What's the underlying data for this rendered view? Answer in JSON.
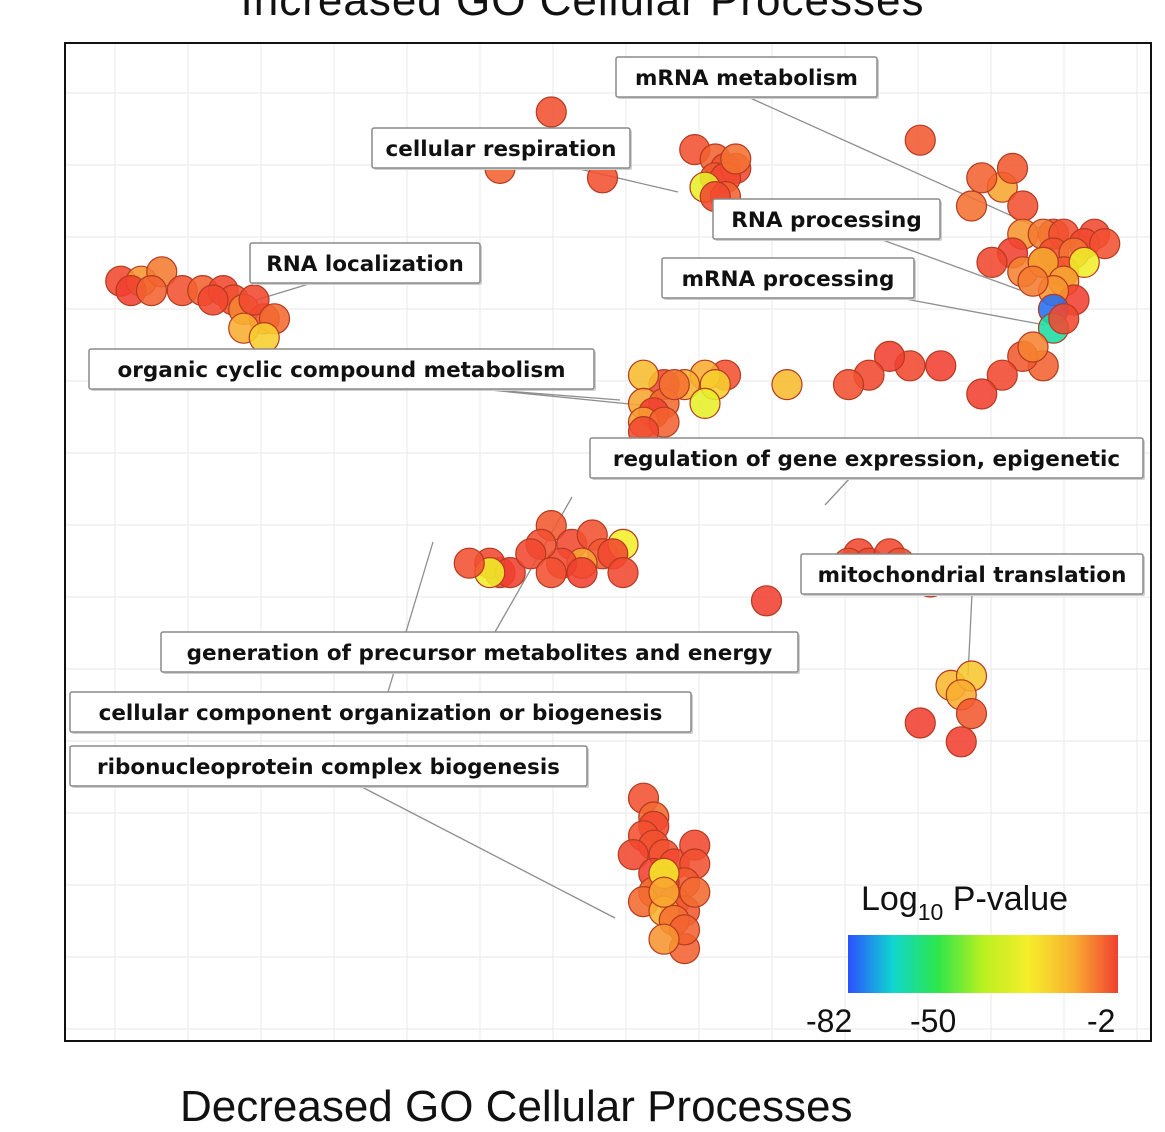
{
  "chart_data": {
    "type": "scatter",
    "title": "Increased GO Cellular Processes",
    "subtitle": "Decreased GO Cellular Processes",
    "xlabel": "",
    "ylabel": "",
    "grid": true,
    "color_scale": {
      "title_prefix": "Log",
      "title_sub": "10",
      "title_suffix": " P-value",
      "min": -82,
      "max": -2,
      "ticks": [
        "-82",
        "-50",
        "-2"
      ],
      "stops": [
        "#2b50ff",
        "#10d6d0",
        "#2ee64a",
        "#b9f020",
        "#f5ee2a",
        "#f8b030",
        "#f04030"
      ],
      "placement": "bottom-right"
    },
    "labels": [
      {
        "id": "mrna-metabolism",
        "text": "mRNA metabolism"
      },
      {
        "id": "cellular-respiration",
        "text": "cellular respiration"
      },
      {
        "id": "rna-processing",
        "text": "RNA processing"
      },
      {
        "id": "rna-localization",
        "text": "RNA localization"
      },
      {
        "id": "mrna-processing",
        "text": "mRNA processing"
      },
      {
        "id": "organic-cyclic",
        "text": "organic cyclic compound metabolism"
      },
      {
        "id": "regulation-epigenetic",
        "text": "regulation of gene expression, epigenetic"
      },
      {
        "id": "mito-translation",
        "text": "mitochondrial translation"
      },
      {
        "id": "precursor-metabolites",
        "text": "generation of precursor metabolites and energy"
      },
      {
        "id": "component-organization",
        "text": "cellular component organization or biogenesis"
      },
      {
        "id": "ribonucleoprotein",
        "text": "ribonucleoprotein complex biogenesis"
      }
    ],
    "points": [
      {
        "x": 45,
        "y": 95,
        "v": -4
      },
      {
        "x": 81,
        "y": 92,
        "v": -5
      },
      {
        "x": 89,
        "y": 87,
        "v": -14
      },
      {
        "x": 90,
        "y": 89,
        "v": -5
      },
      {
        "x": 87,
        "y": 88,
        "v": -6
      },
      {
        "x": 79,
        "y": 83,
        "v": -4
      },
      {
        "x": 91,
        "y": 85,
        "v": -4
      },
      {
        "x": 86,
        "y": 85,
        "v": -8
      },
      {
        "x": 94,
        "y": 82,
        "v": -4
      },
      {
        "x": 98,
        "y": 82,
        "v": -3
      },
      {
        "x": 91,
        "y": 82,
        "v": -12
      },
      {
        "x": 93,
        "y": 82,
        "v": -9
      },
      {
        "x": 95,
        "y": 82,
        "v": -4
      },
      {
        "x": 97,
        "y": 81,
        "v": -3
      },
      {
        "x": 99,
        "y": 81,
        "v": -4
      },
      {
        "x": 90,
        "y": 80,
        "v": -2
      },
      {
        "x": 94,
        "y": 80,
        "v": -4
      },
      {
        "x": 96,
        "y": 80,
        "v": -8
      },
      {
        "x": 91,
        "y": 78,
        "v": -10
      },
      {
        "x": 95,
        "y": 78,
        "v": -5
      },
      {
        "x": 88,
        "y": 79,
        "v": -3
      },
      {
        "x": 93,
        "y": 79,
        "v": -28
      },
      {
        "x": 93,
        "y": 79,
        "v": -12
      },
      {
        "x": 97,
        "y": 79,
        "v": -30
      },
      {
        "x": 95,
        "y": 77,
        "v": -14
      },
      {
        "x": 96,
        "y": 75,
        "v": -2
      },
      {
        "x": 94,
        "y": 76,
        "v": -12
      },
      {
        "x": 92,
        "y": 77,
        "v": -9
      },
      {
        "x": 94,
        "y": 74,
        "v": -79
      },
      {
        "x": 94,
        "y": 72,
        "v": -64
      },
      {
        "x": 95,
        "y": 73,
        "v": -3
      },
      {
        "x": 93,
        "y": 68,
        "v": -6
      },
      {
        "x": 91,
        "y": 69,
        "v": -5
      },
      {
        "x": 92,
        "y": 70,
        "v": -10
      },
      {
        "x": 89,
        "y": 67,
        "v": -3
      },
      {
        "x": 87,
        "y": 65,
        "v": -2
      },
      {
        "x": 83,
        "y": 68,
        "v": -2
      },
      {
        "x": 80,
        "y": 68,
        "v": -3
      },
      {
        "x": 78,
        "y": 69,
        "v": -2
      },
      {
        "x": 76,
        "y": 67,
        "v": -3
      },
      {
        "x": 74,
        "y": 66,
        "v": -4
      },
      {
        "x": 68,
        "y": 66,
        "v": -18
      },
      {
        "x": 62,
        "y": 67,
        "v": -4
      },
      {
        "x": 60,
        "y": 67,
        "v": -15
      },
      {
        "x": 61,
        "y": 66,
        "v": -22
      },
      {
        "x": 58,
        "y": 66,
        "v": -16
      },
      {
        "x": 56,
        "y": 66,
        "v": -3
      },
      {
        "x": 54,
        "y": 67,
        "v": -18
      },
      {
        "x": 54,
        "y": 64,
        "v": -14
      },
      {
        "x": 56,
        "y": 64,
        "v": -7
      },
      {
        "x": 57,
        "y": 66,
        "v": -8
      },
      {
        "x": 60,
        "y": 64,
        "v": -32
      },
      {
        "x": 55,
        "y": 63,
        "v": -2
      },
      {
        "x": 54,
        "y": 62,
        "v": -13
      },
      {
        "x": 56,
        "y": 62,
        "v": -6
      },
      {
        "x": 54,
        "y": 61,
        "v": -3
      },
      {
        "x": 50,
        "y": 88,
        "v": -4
      },
      {
        "x": 59,
        "y": 91,
        "v": -4
      },
      {
        "x": 61,
        "y": 90,
        "v": -6
      },
      {
        "x": 62,
        "y": 89,
        "v": -4
      },
      {
        "x": 61,
        "y": 88,
        "v": -5
      },
      {
        "x": 63,
        "y": 89,
        "v": -3
      },
      {
        "x": 62,
        "y": 88,
        "v": -3
      },
      {
        "x": 60,
        "y": 87,
        "v": -32
      },
      {
        "x": 62,
        "y": 86,
        "v": -6
      },
      {
        "x": 61,
        "y": 86,
        "v": -3
      },
      {
        "x": 63,
        "y": 90,
        "v": -8
      },
      {
        "x": 40,
        "y": 89,
        "v": -6
      },
      {
        "x": 3,
        "y": 77,
        "v": -3
      },
      {
        "x": 5,
        "y": 77,
        "v": -12
      },
      {
        "x": 7,
        "y": 78,
        "v": -9
      },
      {
        "x": 9,
        "y": 76,
        "v": -4
      },
      {
        "x": 11,
        "y": 76,
        "v": -6
      },
      {
        "x": 13,
        "y": 76,
        "v": -3
      },
      {
        "x": 14,
        "y": 75,
        "v": -4
      },
      {
        "x": 15,
        "y": 74,
        "v": -10
      },
      {
        "x": 17,
        "y": 73,
        "v": -5
      },
      {
        "x": 16,
        "y": 75,
        "v": -3
      },
      {
        "x": 18,
        "y": 73,
        "v": -7
      },
      {
        "x": 12,
        "y": 75,
        "v": -3
      },
      {
        "x": 4,
        "y": 76,
        "v": -2
      },
      {
        "x": 15,
        "y": 72,
        "v": -15
      },
      {
        "x": 17,
        "y": 71,
        "v": -22
      },
      {
        "x": 6,
        "y": 76,
        "v": -6
      },
      {
        "x": 45,
        "y": 51,
        "v": -5
      },
      {
        "x": 47,
        "y": 49,
        "v": -3
      },
      {
        "x": 49,
        "y": 50,
        "v": -4
      },
      {
        "x": 50,
        "y": 48,
        "v": -5
      },
      {
        "x": 48,
        "y": 47,
        "v": -14
      },
      {
        "x": 52,
        "y": 49,
        "v": -29
      },
      {
        "x": 51,
        "y": 48,
        "v": -3
      },
      {
        "x": 46,
        "y": 47,
        "v": -3
      },
      {
        "x": 48,
        "y": 46,
        "v": -2
      },
      {
        "x": 52,
        "y": 46,
        "v": -3
      },
      {
        "x": 40,
        "y": 46,
        "v": -3
      },
      {
        "x": 39,
        "y": 47,
        "v": -3
      },
      {
        "x": 41,
        "y": 46,
        "v": -2
      },
      {
        "x": 39,
        "y": 46,
        "v": -30
      },
      {
        "x": 37,
        "y": 47,
        "v": -4
      },
      {
        "x": 44,
        "y": 49,
        "v": -4
      },
      {
        "x": 43,
        "y": 48,
        "v": -3
      },
      {
        "x": 45,
        "y": 46,
        "v": -4
      },
      {
        "x": 66,
        "y": 43,
        "v": -2
      },
      {
        "x": 75,
        "y": 48,
        "v": -3
      },
      {
        "x": 74,
        "y": 47,
        "v": -4
      },
      {
        "x": 76,
        "y": 47,
        "v": -3
      },
      {
        "x": 78,
        "y": 48,
        "v": -3
      },
      {
        "x": 82,
        "y": 45,
        "v": -2
      },
      {
        "x": 79,
        "y": 47,
        "v": -4
      },
      {
        "x": 84,
        "y": 34,
        "v": -17
      },
      {
        "x": 86,
        "y": 35,
        "v": -20
      },
      {
        "x": 85,
        "y": 33,
        "v": -15
      },
      {
        "x": 86,
        "y": 31,
        "v": -5
      },
      {
        "x": 81,
        "y": 30,
        "v": -2
      },
      {
        "x": 85,
        "y": 28,
        "v": -2
      },
      {
        "x": 54,
        "y": 22,
        "v": -4
      },
      {
        "x": 55,
        "y": 20,
        "v": -7
      },
      {
        "x": 55,
        "y": 19,
        "v": -3
      },
      {
        "x": 54,
        "y": 18,
        "v": -4
      },
      {
        "x": 55,
        "y": 17,
        "v": -4
      },
      {
        "x": 53,
        "y": 16,
        "v": -3
      },
      {
        "x": 56,
        "y": 16,
        "v": -4
      },
      {
        "x": 57,
        "y": 15,
        "v": -3
      },
      {
        "x": 55,
        "y": 14,
        "v": -2
      },
      {
        "x": 59,
        "y": 17,
        "v": -3
      },
      {
        "x": 59,
        "y": 15,
        "v": -4
      },
      {
        "x": 58,
        "y": 13,
        "v": -5
      },
      {
        "x": 56,
        "y": 13,
        "v": -2
      },
      {
        "x": 55,
        "y": 12,
        "v": -8
      },
      {
        "x": 54,
        "y": 11,
        "v": -7
      },
      {
        "x": 57,
        "y": 11,
        "v": -7
      },
      {
        "x": 58,
        "y": 10,
        "v": -5
      },
      {
        "x": 56,
        "y": 10,
        "v": -16
      },
      {
        "x": 57,
        "y": 9,
        "v": -8
      },
      {
        "x": 58,
        "y": 6,
        "v": -6
      },
      {
        "x": 58,
        "y": 8,
        "v": -6
      },
      {
        "x": 56,
        "y": 7,
        "v": -12
      },
      {
        "x": 56,
        "y": 14,
        "v": -28
      },
      {
        "x": 56,
        "y": 12,
        "v": -14
      },
      {
        "x": 59,
        "y": 12,
        "v": -7
      }
    ]
  }
}
